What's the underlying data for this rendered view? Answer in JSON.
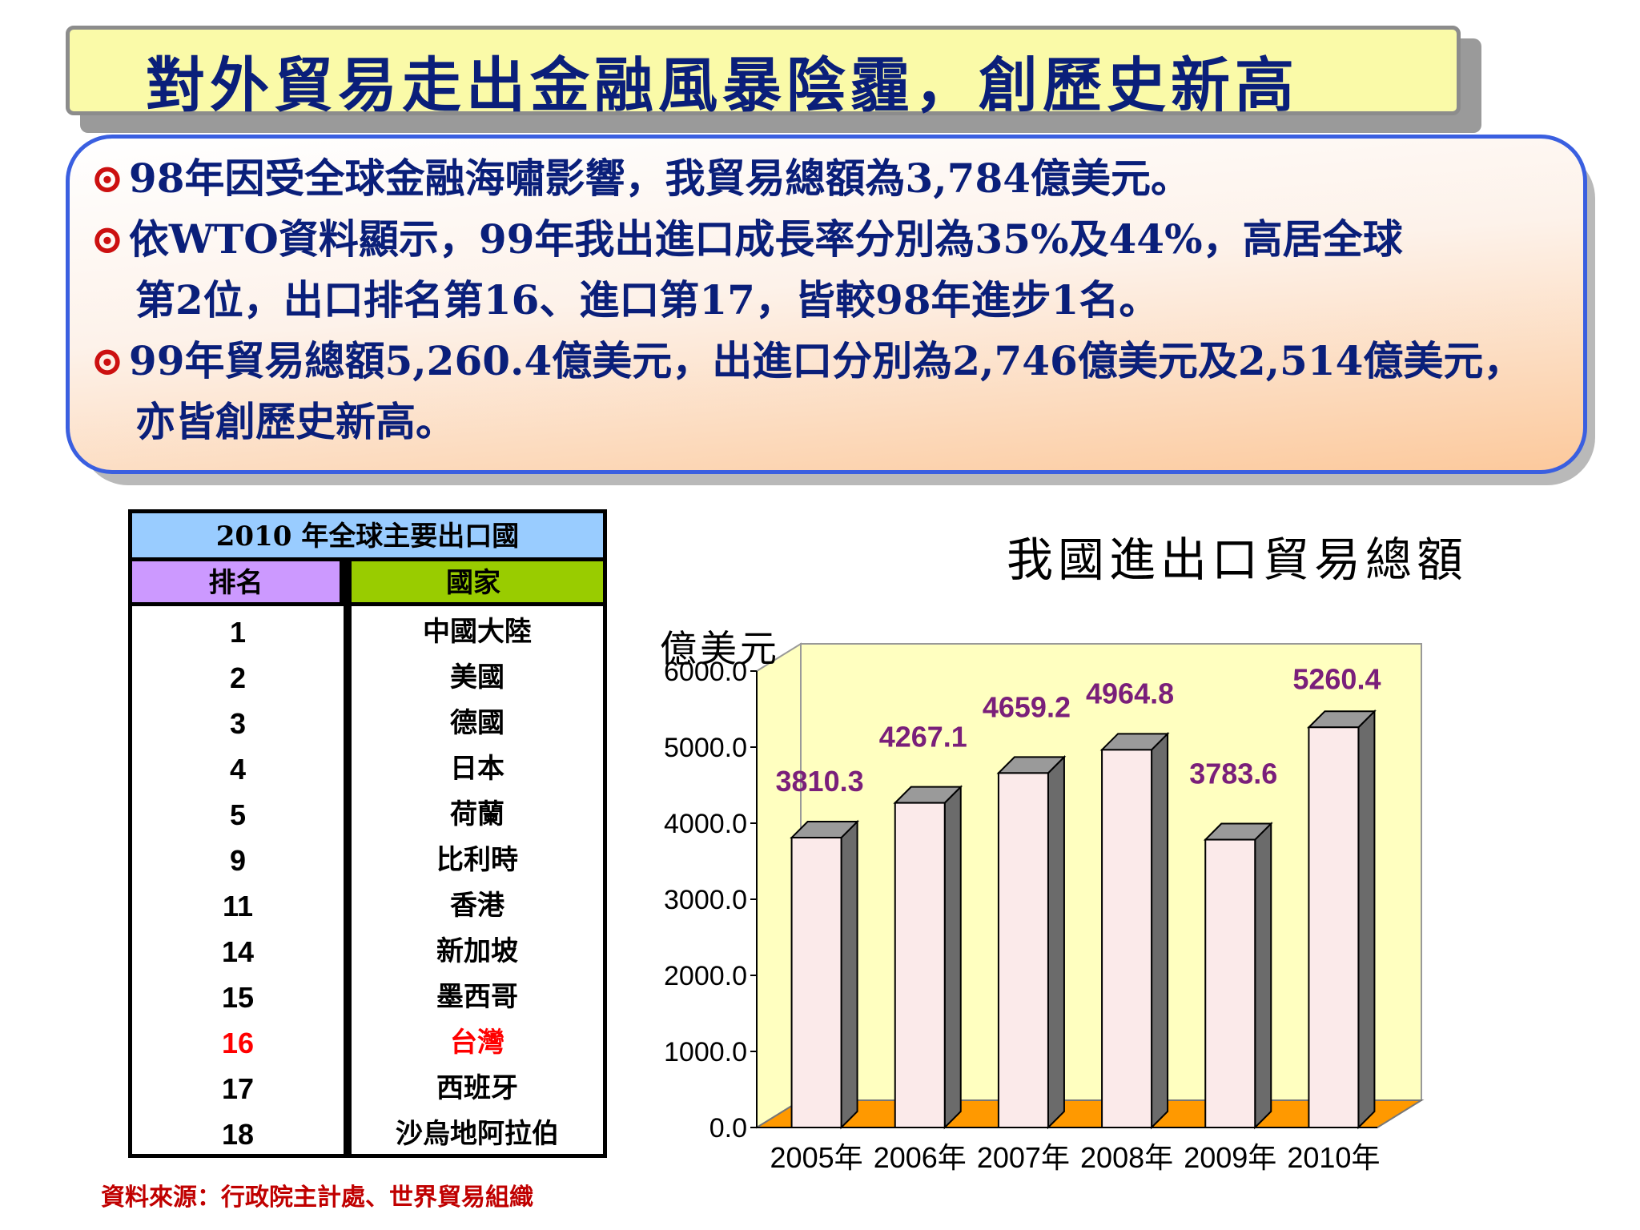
{
  "title": "對外貿易走出金融風暴陰霾，創歷史新高",
  "bullets": [
    {
      "lines": [
        "98年因受全球金融海嘯影響，我貿易總額為3,784億美元。"
      ]
    },
    {
      "lines": [
        "依WTO資料顯示，99年我出進口成長率分別為35%及44%，高居全球",
        "第2位，出口排名第16、進口第17，皆較98年進步1名。"
      ]
    },
    {
      "lines": [
        "99年貿易總額5,260.4億美元，出進口分別為2,746億美元及2,514億美元，",
        "亦皆創歷史新高。"
      ]
    }
  ],
  "bullet_mark": "⊙",
  "table": {
    "caption": "2010  年全球主要出口國",
    "col_rank": "排名",
    "col_country": "國家",
    "rows": [
      {
        "rank": "1",
        "country": "中國大陸"
      },
      {
        "rank": "2",
        "country": "美國"
      },
      {
        "rank": "3",
        "country": "德國"
      },
      {
        "rank": "4",
        "country": "日本"
      },
      {
        "rank": "5",
        "country": "荷蘭"
      },
      {
        "rank": "9",
        "country": "比利時"
      },
      {
        "rank": "11",
        "country": "香港"
      },
      {
        "rank": "14",
        "country": "新加坡"
      },
      {
        "rank": "15",
        "country": "墨西哥"
      },
      {
        "rank": "16",
        "country": "台灣",
        "highlight": true
      },
      {
        "rank": "17",
        "country": "西班牙"
      },
      {
        "rank": "18",
        "country": "沙烏地阿拉伯"
      }
    ],
    "highlight_color": "#ff0000"
  },
  "source": "資料來源：行政院主計處、世界貿易組織",
  "chart_data": {
    "type": "bar",
    "title": "我國進出口貿易總額",
    "ylabel": "億美元",
    "xlabel": "",
    "categories": [
      "2005年",
      "2006年",
      "2007年",
      "2008年",
      "2009年",
      "2010年"
    ],
    "values": [
      3810.3,
      4267.1,
      4659.2,
      4964.8,
      3783.6,
      5260.4
    ],
    "data_labels": [
      "3810.3",
      "4267.1",
      "4659.2",
      "4964.8",
      "3783.6",
      "5260.4"
    ],
    "yticks": [
      "0.0",
      "1000.0",
      "2000.0",
      "3000.0",
      "4000.0",
      "5000.0",
      "6000.0"
    ],
    "ylim": [
      0,
      6000
    ],
    "grid": false,
    "legend": "none",
    "colors": {
      "bar": "#fbeaea",
      "bar_side": "#6b6b6b",
      "wall": "#ffffc0",
      "floor": "#ff9900",
      "label": "#7a1f7a"
    }
  }
}
